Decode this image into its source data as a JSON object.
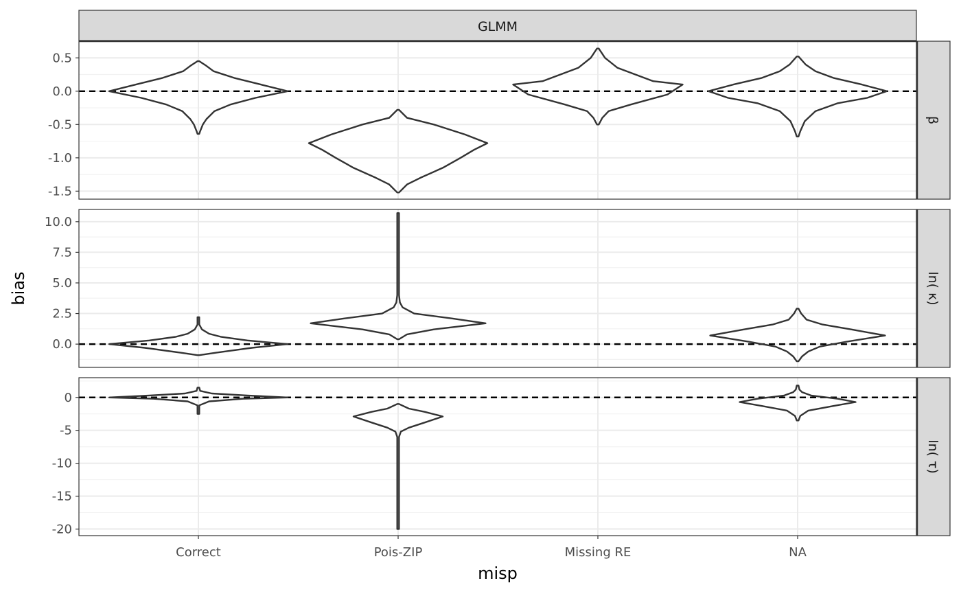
{
  "chart_data": {
    "type": "violin",
    "title": "",
    "xlabel": "misp",
    "ylabel": "bias",
    "top_strip": "GLMM",
    "categories": [
      "Correct",
      "Pois-ZIP",
      "Missing RE",
      "NA"
    ],
    "reference_line": 0,
    "panels": [
      {
        "label": "β",
        "ylim": [
          -1.62,
          0.75
        ],
        "yticks": [
          -1.5,
          -1.0,
          -0.5,
          0.0,
          0.5
        ],
        "ytick_labels": [
          "-1.5",
          "-1.0",
          "-0.5",
          "0.0",
          "0.5"
        ],
        "violins": [
          {
            "category": "Correct",
            "profile": [
              [
                -0.64,
                0.01
              ],
              [
                -0.6,
                0.02
              ],
              [
                -0.5,
                0.05
              ],
              [
                -0.42,
                0.09
              ],
              [
                -0.3,
                0.18
              ],
              [
                -0.2,
                0.36
              ],
              [
                -0.1,
                0.64
              ],
              [
                0.0,
                1.0
              ],
              [
                0.1,
                0.7
              ],
              [
                0.2,
                0.4
              ],
              [
                0.3,
                0.17
              ],
              [
                0.38,
                0.09
              ],
              [
                0.45,
                0.01
              ]
            ]
          },
          {
            "category": "Pois-ZIP",
            "profile": [
              [
                -1.52,
                0.01
              ],
              [
                -1.4,
                0.1
              ],
              [
                -1.3,
                0.25
              ],
              [
                -1.15,
                0.5
              ],
              [
                -1.0,
                0.7
              ],
              [
                -0.88,
                0.85
              ],
              [
                -0.78,
                1.0
              ],
              [
                -0.65,
                0.75
              ],
              [
                -0.5,
                0.4
              ],
              [
                -0.4,
                0.1
              ],
              [
                -0.28,
                0.01
              ]
            ]
          },
          {
            "category": "Missing RE",
            "profile": [
              [
                -0.5,
                0.01
              ],
              [
                -0.4,
                0.05
              ],
              [
                -0.3,
                0.12
              ],
              [
                -0.2,
                0.37
              ],
              [
                -0.05,
                0.78
              ],
              [
                0.1,
                0.95
              ],
              [
                0.15,
                0.62
              ],
              [
                0.25,
                0.42
              ],
              [
                0.35,
                0.22
              ],
              [
                0.5,
                0.08
              ],
              [
                0.6,
                0.03
              ],
              [
                0.64,
                0.01
              ]
            ]
          },
          {
            "category": "NA",
            "profile": [
              [
                -0.68,
                0.01
              ],
              [
                -0.6,
                0.03
              ],
              [
                -0.45,
                0.08
              ],
              [
                -0.3,
                0.2
              ],
              [
                -0.18,
                0.45
              ],
              [
                -0.1,
                0.78
              ],
              [
                0.0,
                1.0
              ],
              [
                0.1,
                0.72
              ],
              [
                0.2,
                0.4
              ],
              [
                0.3,
                0.2
              ],
              [
                0.4,
                0.09
              ],
              [
                0.52,
                0.01
              ]
            ]
          }
        ]
      },
      {
        "label": "ln( κ)",
        "ylim": [
          -1.9,
          11.0
        ],
        "yticks": [
          0.0,
          2.5,
          5.0,
          7.5,
          10.0
        ],
        "ytick_labels": [
          "0.0",
          "2.5",
          "5.0",
          "7.5",
          "10.0"
        ],
        "violins": [
          {
            "category": "Correct",
            "profile": [
              [
                -0.9,
                0.01
              ],
              [
                -0.7,
                0.2
              ],
              [
                -0.3,
                0.6
              ],
              [
                0.0,
                1.0
              ],
              [
                0.3,
                0.55
              ],
              [
                0.6,
                0.25
              ],
              [
                0.85,
                0.12
              ],
              [
                1.2,
                0.04
              ],
              [
                1.6,
                0.01
              ],
              [
                2.2,
                0.01
              ]
            ]
          },
          {
            "category": "Pois-ZIP",
            "profile": [
              [
                0.4,
                0.01
              ],
              [
                0.8,
                0.1
              ],
              [
                1.2,
                0.4
              ],
              [
                1.7,
                0.98
              ],
              [
                2.1,
                0.6
              ],
              [
                2.5,
                0.18
              ],
              [
                3.0,
                0.05
              ],
              [
                3.4,
                0.02
              ],
              [
                4.0,
                0.01
              ],
              [
                10.7,
                0.01
              ]
            ]
          },
          {
            "category": "NA",
            "profile": [
              [
                -1.4,
                0.01
              ],
              [
                -1.0,
                0.05
              ],
              [
                -0.6,
                0.12
              ],
              [
                -0.2,
                0.25
              ],
              [
                0.2,
                0.55
              ],
              [
                0.7,
                0.98
              ],
              [
                1.2,
                0.6
              ],
              [
                1.6,
                0.28
              ],
              [
                2.0,
                0.1
              ],
              [
                2.5,
                0.04
              ],
              [
                2.9,
                0.01
              ]
            ]
          }
        ]
      },
      {
        "label": "ln( τ)",
        "ylim": [
          -21.0,
          3.0
        ],
        "yticks": [
          -20,
          -15,
          -10,
          -5,
          0
        ],
        "ytick_labels": [
          "-20",
          "-15",
          "-10",
          "-5",
          "0"
        ],
        "violins": [
          {
            "category": "Correct",
            "profile": [
              [
                -2.5,
                0.01
              ],
              [
                -1.2,
                0.01
              ],
              [
                -0.6,
                0.12
              ],
              [
                -0.2,
                0.5
              ],
              [
                0.0,
                1.0
              ],
              [
                0.3,
                0.55
              ],
              [
                0.6,
                0.15
              ],
              [
                1.0,
                0.02
              ],
              [
                1.5,
                0.01
              ]
            ]
          },
          {
            "category": "Pois-ZIP",
            "profile": [
              [
                -20.0,
                0.01
              ],
              [
                -6.0,
                0.01
              ],
              [
                -5.2,
                0.03
              ],
              [
                -4.6,
                0.12
              ],
              [
                -3.8,
                0.3
              ],
              [
                -2.9,
                0.5
              ],
              [
                -2.2,
                0.3
              ],
              [
                -1.7,
                0.12
              ],
              [
                -1.0,
                0.01
              ]
            ]
          },
          {
            "category": "NA",
            "profile": [
              [
                -3.5,
                0.01
              ],
              [
                -2.8,
                0.03
              ],
              [
                -2.0,
                0.12
              ],
              [
                -1.3,
                0.4
              ],
              [
                -0.7,
                0.65
              ],
              [
                -0.2,
                0.45
              ],
              [
                0.3,
                0.15
              ],
              [
                0.8,
                0.05
              ],
              [
                1.2,
                0.02
              ],
              [
                1.8,
                0.01
              ]
            ]
          }
        ]
      }
    ]
  }
}
